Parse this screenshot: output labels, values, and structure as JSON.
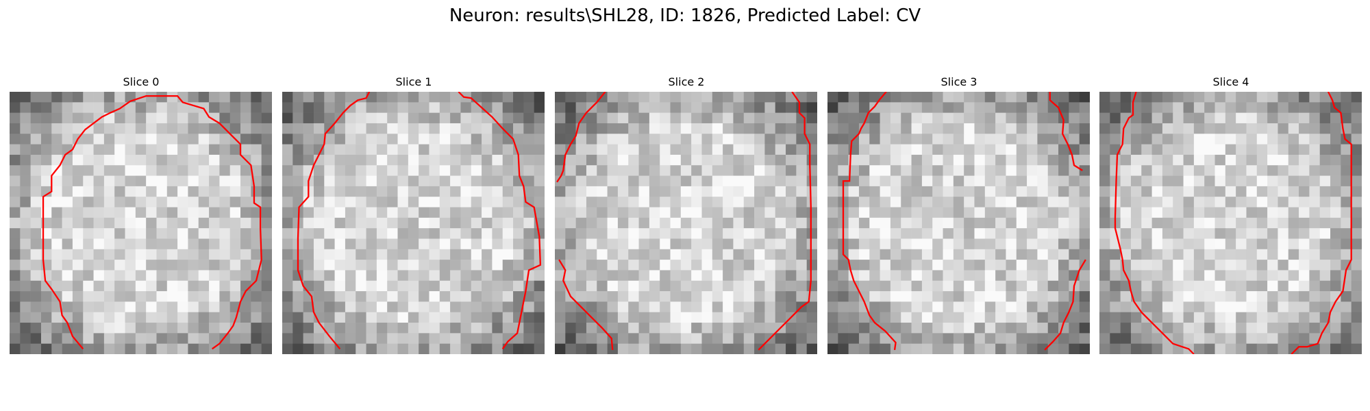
{
  "figure": {
    "title": "Neuron: results\\SHL28, ID: 1826, Predicted Label: CV"
  },
  "panels": [
    {
      "title": "Slice 0"
    },
    {
      "title": "Slice 1"
    },
    {
      "title": "Slice 2"
    },
    {
      "title": "Slice 3"
    },
    {
      "title": "Slice 4"
    }
  ],
  "colors": {
    "contour": "#ff0000",
    "background": "#ffffff"
  }
}
